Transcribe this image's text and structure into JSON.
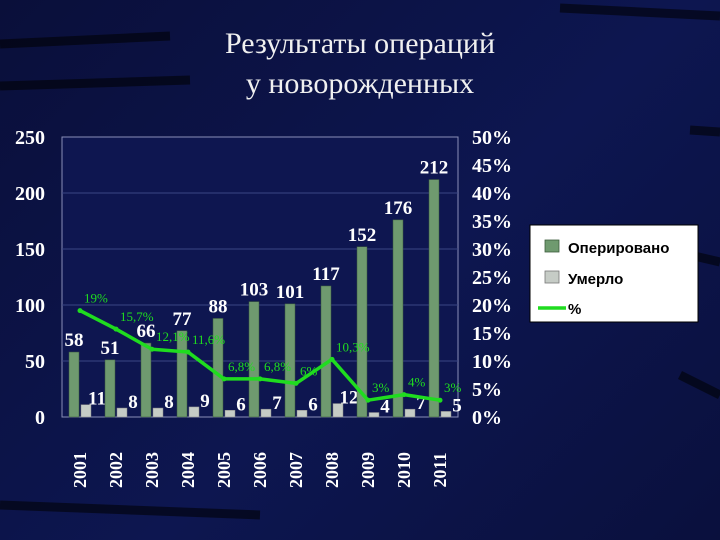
{
  "slide": {
    "title_line1": "Результаты операций",
    "title_line2": "у новорожденных"
  },
  "colors": {
    "background": "#0b1140",
    "operated_bar": "#6f9a6f",
    "died_bar": "#c6ccc6",
    "percent_line": "#1fdc1f",
    "text": "#ffffff"
  },
  "chart_data": {
    "type": "bar",
    "categories": [
      "2001",
      "2002",
      "2003",
      "2004",
      "2005",
      "2006",
      "2007",
      "2008",
      "2009",
      "2010",
      "2011"
    ],
    "series": [
      {
        "name": "Оперировано",
        "type": "bar",
        "axis": "left",
        "values": [
          58,
          51,
          66,
          77,
          88,
          103,
          101,
          117,
          152,
          176,
          212
        ],
        "labels": [
          "58",
          "51",
          "66",
          "77",
          "88",
          "103",
          "101",
          "117",
          "152",
          "176",
          "212"
        ]
      },
      {
        "name": "Умерло",
        "type": "bar",
        "axis": "left",
        "values": [
          11,
          8,
          8,
          9,
          6,
          7,
          6,
          12,
          4,
          7,
          5
        ],
        "labels": [
          "11",
          "8",
          "8",
          "9",
          "6",
          "7",
          "6",
          "12",
          "4",
          "7",
          "5"
        ]
      },
      {
        "name": "%",
        "type": "line",
        "axis": "right",
        "values": [
          19,
          15.7,
          12.1,
          11.6,
          6.8,
          6.8,
          6,
          10.3,
          3,
          4,
          3
        ],
        "labels": [
          "19%",
          "15,7%",
          "12,1%",
          "11,6%",
          "6,8%",
          "6,8%",
          "6%",
          "10,3%",
          "3%",
          "4%",
          "3%"
        ]
      }
    ],
    "y_left": {
      "ticks": [
        "0",
        "50",
        "100",
        "150",
        "200",
        "250"
      ],
      "ylim": [
        0,
        250
      ]
    },
    "y_right": {
      "ticks": [
        "0%",
        "5%",
        "10%",
        "15%",
        "20%",
        "25%",
        "30%",
        "35%",
        "40%",
        "45%",
        "50%"
      ],
      "ylim": [
        0,
        50
      ]
    },
    "legend": [
      "Оперировано",
      "Умерло",
      "%"
    ],
    "legend_placement": "right",
    "grid": true
  }
}
